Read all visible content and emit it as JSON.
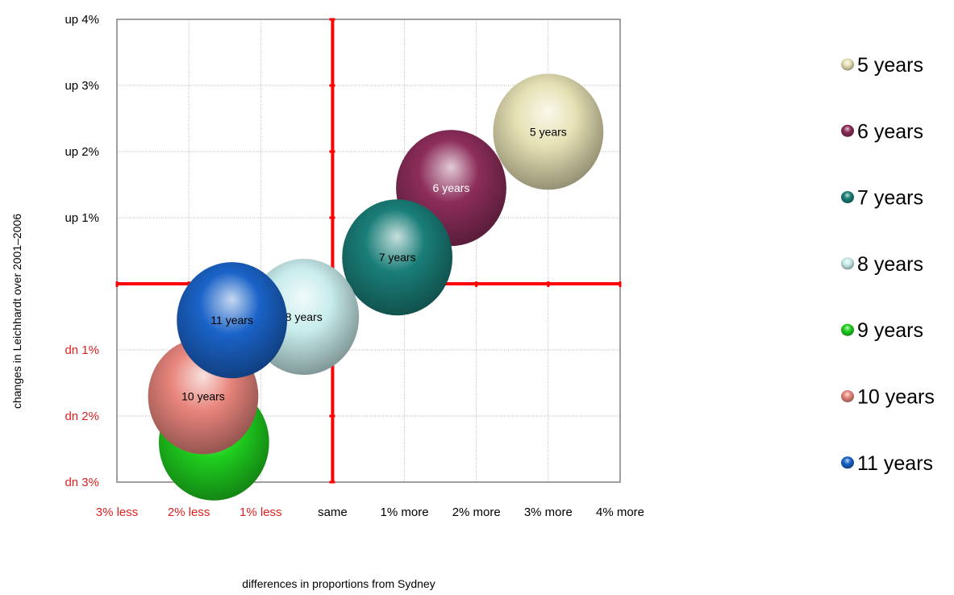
{
  "chart_data": {
    "type": "bubble",
    "xlabel": "differences in proportions from Sydney",
    "ylabel": "changes in Leichhardt over 2001–2006",
    "xlim": [
      -3,
      4
    ],
    "ylim": [
      -3,
      4
    ],
    "x_ticks": [
      {
        "value": -3,
        "label": "3% less",
        "color": "#e02020"
      },
      {
        "value": -2,
        "label": "2% less",
        "color": "#e02020"
      },
      {
        "value": -1,
        "label": "1% less",
        "color": "#e02020"
      },
      {
        "value": 0,
        "label": "same",
        "color": "#000000"
      },
      {
        "value": 1,
        "label": "1% more",
        "color": "#000000"
      },
      {
        "value": 2,
        "label": "2% more",
        "color": "#000000"
      },
      {
        "value": 3,
        "label": "3% more",
        "color": "#000000"
      },
      {
        "value": 4,
        "label": "4% more",
        "color": "#000000"
      }
    ],
    "y_ticks": [
      {
        "value": 4,
        "label": "up 4%",
        "color": "#000000"
      },
      {
        "value": 3,
        "label": "up 3%",
        "color": "#000000"
      },
      {
        "value": 2,
        "label": "up 2%",
        "color": "#000000"
      },
      {
        "value": 1,
        "label": "up 1%",
        "color": "#000000"
      },
      {
        "value": -1,
        "label": "dn 1%",
        "color": "#e02020"
      },
      {
        "value": -2,
        "label": "dn 2%",
        "color": "#e02020"
      },
      {
        "value": -3,
        "label": "dn 3%",
        "color": "#e02020"
      }
    ],
    "grid": true,
    "legend_position": "right",
    "series": [
      {
        "name": "5 years",
        "x": 3.0,
        "y": 2.3,
        "size": 1.0,
        "color": "#e6e1b4",
        "label_color": "#000000"
      },
      {
        "name": "6 years",
        "x": 1.65,
        "y": 1.45,
        "size": 1.0,
        "color": "#8c2d5a",
        "label_color": "#ffffff"
      },
      {
        "name": "7 years",
        "x": 0.9,
        "y": 0.4,
        "size": 1.0,
        "color": "#1a7e78",
        "label_color": "#000000"
      },
      {
        "name": "8 years",
        "x": -0.4,
        "y": -0.5,
        "size": 1.0,
        "color": "#c8ecec",
        "label_color": "#000000"
      },
      {
        "name": "9 years",
        "x": -1.65,
        "y": -2.4,
        "size": 1.0,
        "color": "#1fd01f",
        "label_color": "#000000"
      },
      {
        "name": "10 years",
        "x": -1.8,
        "y": -1.7,
        "size": 1.0,
        "color": "#e8857c",
        "label_color": "#000000"
      },
      {
        "name": "11 years",
        "x": -1.4,
        "y": -0.55,
        "size": 1.0,
        "color": "#1a63c8",
        "label_color": "#000000"
      }
    ]
  }
}
